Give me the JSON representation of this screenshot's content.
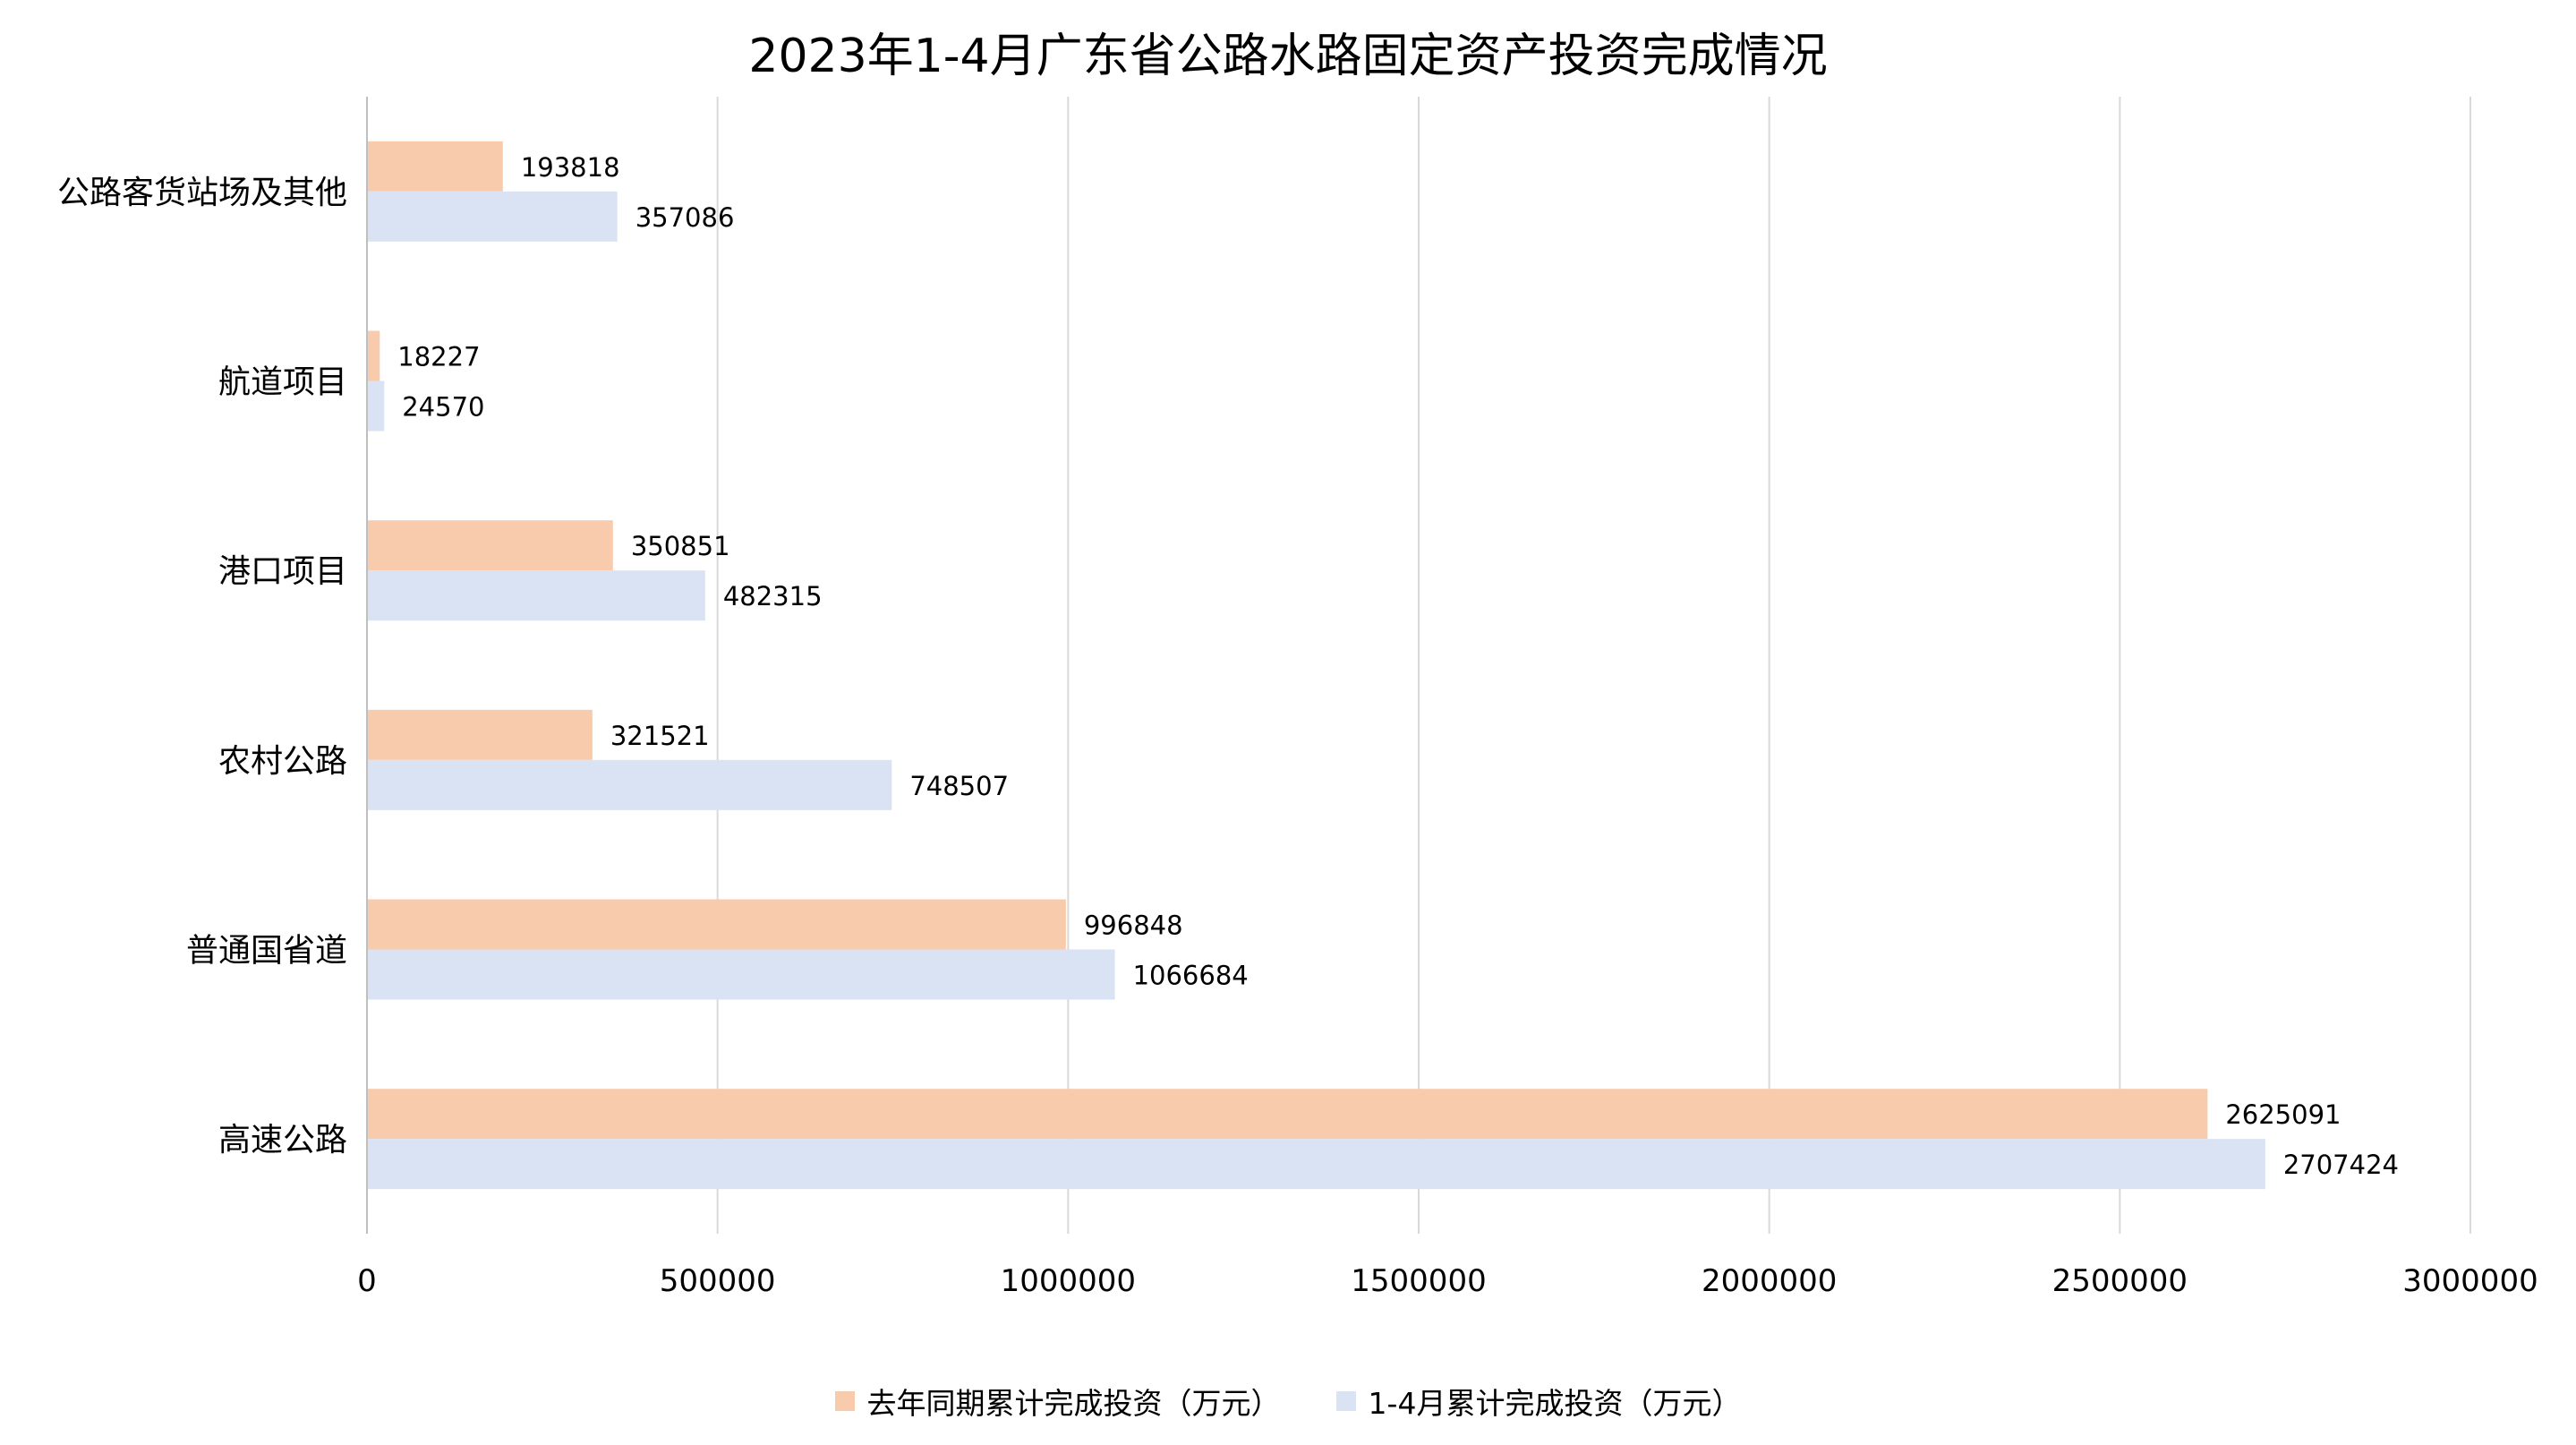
{
  "chart_data": {
    "type": "bar",
    "orientation": "horizontal",
    "title": "2023年1-4月广东省公路水路固定资产投资完成情况",
    "categories": [
      "公路客货站场及其他",
      "航道项目",
      "港口项目",
      "农村公路",
      "普通国省道",
      "高速公路"
    ],
    "series": [
      {
        "name": "去年同期累计完成投资（万元）",
        "color": "#f8cbad",
        "values": [
          193818,
          18227,
          350851,
          321521,
          996848,
          2625091
        ]
      },
      {
        "name": "1-4月累计完成投资（万元）",
        "color": "#dae3f3",
        "values": [
          357086,
          24570,
          482315,
          748507,
          1066684,
          2707424
        ]
      }
    ],
    "xlim": [
      0,
      3000000
    ],
    "xticks": [
      "0",
      "500000",
      "1000000",
      "1500000",
      "2000000",
      "2500000",
      "3000000"
    ],
    "grid": "vertical",
    "legend_position": "bottom"
  }
}
